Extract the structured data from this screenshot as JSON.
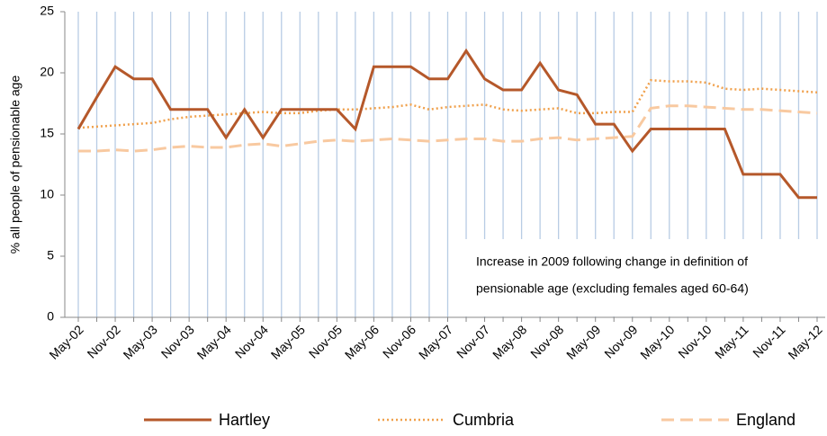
{
  "chart_data": {
    "type": "line",
    "y_label": "% all people of pensionable age",
    "categories": [
      "May-02",
      null,
      "Nov-02",
      null,
      "May-03",
      null,
      "Nov-03",
      null,
      "May-04",
      null,
      "Nov-04",
      null,
      "May-05",
      null,
      "Nov-05",
      null,
      "May-06",
      null,
      "Nov-06",
      null,
      "May-07",
      null,
      "Nov-07",
      null,
      "May-08",
      null,
      "Nov-08",
      null,
      "May-09",
      null,
      "Nov-09",
      null,
      "May-10",
      null,
      "Nov-10",
      null,
      "May-11",
      null,
      "Nov-11",
      null,
      "May-12"
    ],
    "series": [
      {
        "name": "Hartley",
        "color": "#b5582a",
        "style": "solid",
        "values": [
          15.4,
          18,
          20.5,
          19.5,
          19.5,
          17,
          17,
          17,
          14.7,
          17,
          14.7,
          17,
          17,
          17,
          17,
          15.4,
          20.5,
          20.5,
          20.5,
          19.5,
          19.5,
          21.8,
          19.5,
          18.6,
          18.6,
          20.8,
          18.6,
          18.2,
          15.8,
          15.8,
          13.6,
          15.4,
          15.4,
          15.4,
          15.4,
          15.4,
          11.7,
          11.7,
          11.7,
          9.8,
          9.8
        ]
      },
      {
        "name": "Cumbria",
        "color": "#f0a04b",
        "style": "dotted",
        "values": [
          15.5,
          15.6,
          15.7,
          15.8,
          15.9,
          16.2,
          16.4,
          16.5,
          16.6,
          16.7,
          16.8,
          16.7,
          16.7,
          16.9,
          17.0,
          17.0,
          17.1,
          17.2,
          17.4,
          17.0,
          17.2,
          17.3,
          17.4,
          17.0,
          16.9,
          17.0,
          17.1,
          16.7,
          16.7,
          16.8,
          16.8,
          19.4,
          19.3,
          19.3,
          19.2,
          18.7,
          18.6,
          18.7,
          18.6,
          18.5,
          18.4
        ]
      },
      {
        "name": "England",
        "color": "#f8c9a0",
        "style": "dashed",
        "values": [
          13.6,
          13.6,
          13.7,
          13.6,
          13.7,
          13.9,
          14.0,
          13.9,
          13.9,
          14.1,
          14.2,
          14.0,
          14.2,
          14.4,
          14.5,
          14.4,
          14.5,
          14.6,
          14.5,
          14.4,
          14.5,
          14.6,
          14.6,
          14.4,
          14.4,
          14.6,
          14.7,
          14.5,
          14.6,
          14.7,
          14.8,
          17.1,
          17.3,
          17.3,
          17.2,
          17.1,
          17.0,
          17.0,
          16.9,
          16.8,
          16.7
        ]
      }
    ],
    "ylim": [
      0,
      25
    ],
    "yticks": [
      0,
      5,
      10,
      15,
      20,
      25
    ],
    "grid": true,
    "grid_color": "#b8cce4",
    "annotations": [
      "Increase in 2009 following change in definition of",
      "pensionable age (excluding females aged 60-64)"
    ]
  }
}
